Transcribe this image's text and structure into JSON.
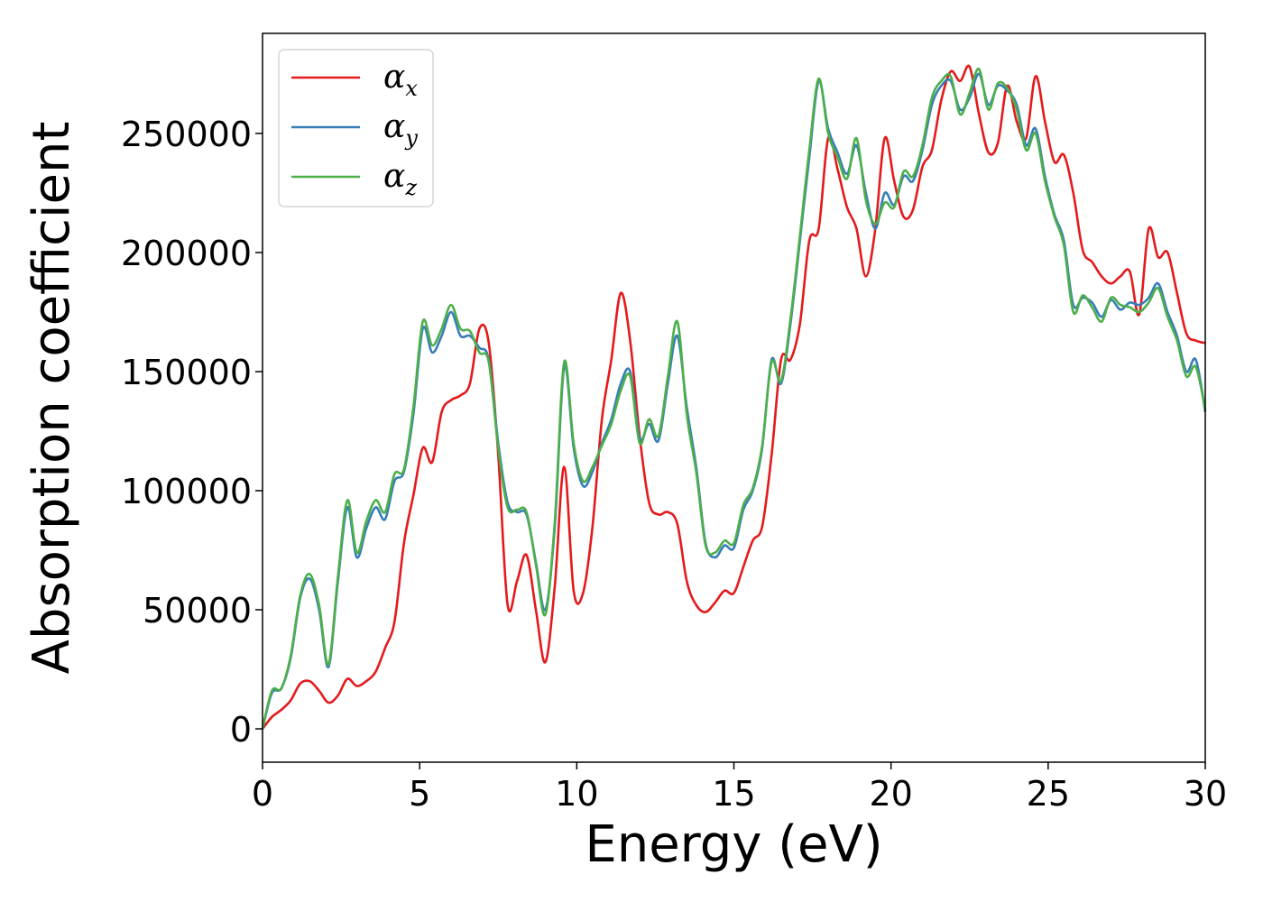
{
  "chart_data": {
    "type": "line",
    "title": "",
    "xlabel": "Energy (eV)",
    "ylabel": "Absorption coefficient",
    "xlim": [
      0,
      30
    ],
    "ylim": [
      -14000,
      292000
    ],
    "xticks": [
      0,
      5,
      10,
      15,
      20,
      25,
      30
    ],
    "yticks": [
      0,
      50000,
      100000,
      150000,
      200000,
      250000
    ],
    "grid": false,
    "legend_position": "top-left",
    "series": [
      {
        "name": "αx",
        "name_symbol": "α",
        "name_subscript": "x",
        "color": "#e41a1c",
        "x": [
          0,
          0.3,
          0.6,
          0.9,
          1.2,
          1.5,
          1.8,
          2.1,
          2.4,
          2.7,
          3.0,
          3.3,
          3.6,
          3.9,
          4.2,
          4.5,
          4.8,
          5.1,
          5.4,
          5.7,
          6.0,
          6.3,
          6.6,
          6.9,
          7.2,
          7.5,
          7.8,
          8.1,
          8.4,
          8.7,
          9.0,
          9.3,
          9.6,
          9.9,
          10.2,
          10.5,
          10.8,
          11.1,
          11.4,
          11.7,
          12.0,
          12.3,
          12.6,
          12.9,
          13.2,
          13.5,
          13.8,
          14.1,
          14.4,
          14.7,
          15.0,
          15.3,
          15.6,
          15.9,
          16.2,
          16.5,
          16.8,
          17.1,
          17.4,
          17.7,
          18.0,
          18.3,
          18.6,
          18.9,
          19.2,
          19.5,
          19.8,
          20.1,
          20.4,
          20.7,
          21.0,
          21.3,
          21.6,
          21.9,
          22.2,
          22.5,
          22.8,
          23.1,
          23.4,
          23.7,
          24.0,
          24.3,
          24.6,
          24.9,
          25.2,
          25.5,
          25.8,
          26.1,
          26.4,
          26.7,
          27.0,
          27.3,
          27.6,
          27.9,
          28.2,
          28.5,
          28.8,
          29.1,
          29.4,
          29.7,
          30.0
        ],
        "values": [
          0,
          5000,
          8000,
          12000,
          19000,
          20000,
          16000,
          11000,
          14000,
          21000,
          18000,
          20000,
          24000,
          34000,
          45000,
          78000,
          98000,
          118000,
          112000,
          133000,
          138000,
          140000,
          145000,
          168000,
          162000,
          115000,
          52000,
          62000,
          73000,
          50000,
          28000,
          60000,
          110000,
          58000,
          57000,
          85000,
          130000,
          155000,
          183000,
          163000,
          123000,
          95000,
          90000,
          91000,
          86000,
          62000,
          52000,
          49000,
          53000,
          58000,
          57000,
          68000,
          79000,
          85000,
          115000,
          155000,
          155000,
          170000,
          205000,
          210000,
          248000,
          235000,
          219000,
          210000,
          190000,
          210000,
          248000,
          230000,
          215000,
          218000,
          236000,
          243000,
          264000,
          276000,
          272000,
          278000,
          258000,
          242000,
          246000,
          270000,
          255000,
          248000,
          274000,
          255000,
          238000,
          241000,
          225000,
          201000,
          196000,
          190000,
          187000,
          190000,
          192000,
          174000,
          210000,
          198000,
          200000,
          183000,
          166000,
          163000,
          162000
        ]
      },
      {
        "name": "αy",
        "name_symbol": "α",
        "name_subscript": "y",
        "color": "#377eb8",
        "x": [
          0,
          0.3,
          0.6,
          0.9,
          1.2,
          1.5,
          1.8,
          2.1,
          2.4,
          2.7,
          3.0,
          3.3,
          3.6,
          3.9,
          4.2,
          4.5,
          4.8,
          5.1,
          5.4,
          5.7,
          6.0,
          6.3,
          6.6,
          6.9,
          7.2,
          7.5,
          7.8,
          8.1,
          8.4,
          8.7,
          9.0,
          9.3,
          9.6,
          9.9,
          10.2,
          10.5,
          10.8,
          11.1,
          11.4,
          11.7,
          12.0,
          12.3,
          12.6,
          12.9,
          13.2,
          13.5,
          13.8,
          14.1,
          14.4,
          14.7,
          15.0,
          15.3,
          15.6,
          15.9,
          16.2,
          16.5,
          16.8,
          17.1,
          17.4,
          17.7,
          18.0,
          18.3,
          18.6,
          18.9,
          19.2,
          19.5,
          19.8,
          20.1,
          20.4,
          20.7,
          21.0,
          21.3,
          21.6,
          21.9,
          22.2,
          22.5,
          22.8,
          23.1,
          23.4,
          23.7,
          24.0,
          24.3,
          24.6,
          24.9,
          25.2,
          25.5,
          25.8,
          26.1,
          26.4,
          26.7,
          27.0,
          27.3,
          27.6,
          27.9,
          28.2,
          28.5,
          28.8,
          29.1,
          29.4,
          29.7,
          30.0
        ],
        "values": [
          0,
          15000,
          17000,
          30000,
          55000,
          63000,
          50000,
          26000,
          62000,
          93000,
          72000,
          84000,
          93000,
          88000,
          104000,
          108000,
          132000,
          168000,
          158000,
          165000,
          175000,
          165000,
          165000,
          160000,
          155000,
          120000,
          95000,
          91000,
          90000,
          70000,
          50000,
          85000,
          152000,
          118000,
          102000,
          108000,
          120000,
          130000,
          145000,
          150000,
          122000,
          128000,
          121000,
          145000,
          165000,
          135000,
          110000,
          78000,
          72000,
          77000,
          76000,
          92000,
          100000,
          118000,
          155000,
          145000,
          170000,
          205000,
          240000,
          272000,
          252000,
          242000,
          233000,
          245000,
          225000,
          210000,
          225000,
          220000,
          232000,
          230000,
          243000,
          262000,
          270000,
          272000,
          260000,
          265000,
          275000,
          262000,
          270000,
          268000,
          262000,
          245000,
          252000,
          232000,
          216000,
          205000,
          178000,
          181000,
          179000,
          173000,
          180000,
          176000,
          179000,
          178000,
          181000,
          187000,
          175000,
          165000,
          150000,
          155000,
          133000
        ]
      },
      {
        "name": "αz",
        "name_symbol": "α",
        "name_subscript": "z",
        "color": "#4daf4a",
        "x": [
          0,
          0.3,
          0.6,
          0.9,
          1.2,
          1.5,
          1.8,
          2.1,
          2.4,
          2.7,
          3.0,
          3.3,
          3.6,
          3.9,
          4.2,
          4.5,
          4.8,
          5.1,
          5.4,
          5.7,
          6.0,
          6.3,
          6.6,
          6.9,
          7.2,
          7.5,
          7.8,
          8.1,
          8.4,
          8.7,
          9.0,
          9.3,
          9.6,
          9.9,
          10.2,
          10.5,
          10.8,
          11.1,
          11.4,
          11.7,
          12.0,
          12.3,
          12.6,
          12.9,
          13.2,
          13.5,
          13.8,
          14.1,
          14.4,
          14.7,
          15.0,
          15.3,
          15.6,
          15.9,
          16.2,
          16.5,
          16.8,
          17.1,
          17.4,
          17.7,
          18.0,
          18.3,
          18.6,
          18.9,
          19.2,
          19.5,
          19.8,
          20.1,
          20.4,
          20.7,
          21.0,
          21.3,
          21.6,
          21.9,
          22.2,
          22.5,
          22.8,
          23.1,
          23.4,
          23.7,
          24.0,
          24.3,
          24.6,
          24.9,
          25.2,
          25.5,
          25.8,
          26.1,
          26.4,
          26.7,
          27.0,
          27.3,
          27.6,
          27.9,
          28.2,
          28.5,
          28.8,
          29.1,
          29.4,
          29.7,
          30.0
        ],
        "values": [
          0,
          16000,
          17000,
          31000,
          56000,
          65000,
          52000,
          27000,
          64000,
          96000,
          74000,
          87000,
          96000,
          91000,
          107000,
          109000,
          135000,
          171000,
          161000,
          168000,
          178000,
          168000,
          167000,
          158000,
          154000,
          118000,
          93000,
          92000,
          91000,
          69000,
          48000,
          87000,
          154000,
          120000,
          104000,
          110000,
          119000,
          128000,
          142000,
          148000,
          120000,
          130000,
          123000,
          148000,
          171000,
          132000,
          108000,
          77000,
          74000,
          79000,
          78000,
          94000,
          101000,
          119000,
          154000,
          146000,
          172000,
          207000,
          243000,
          273000,
          250000,
          240000,
          231000,
          248000,
          222000,
          212000,
          221000,
          219000,
          234000,
          232000,
          245000,
          265000,
          272000,
          274000,
          258000,
          267000,
          277000,
          260000,
          271000,
          269000,
          260000,
          243000,
          250000,
          230000,
          215000,
          203000,
          175000,
          182000,
          177000,
          171000,
          181000,
          178000,
          177000,
          175000,
          179000,
          185000,
          173000,
          163000,
          148000,
          152000,
          134000
        ]
      }
    ]
  }
}
